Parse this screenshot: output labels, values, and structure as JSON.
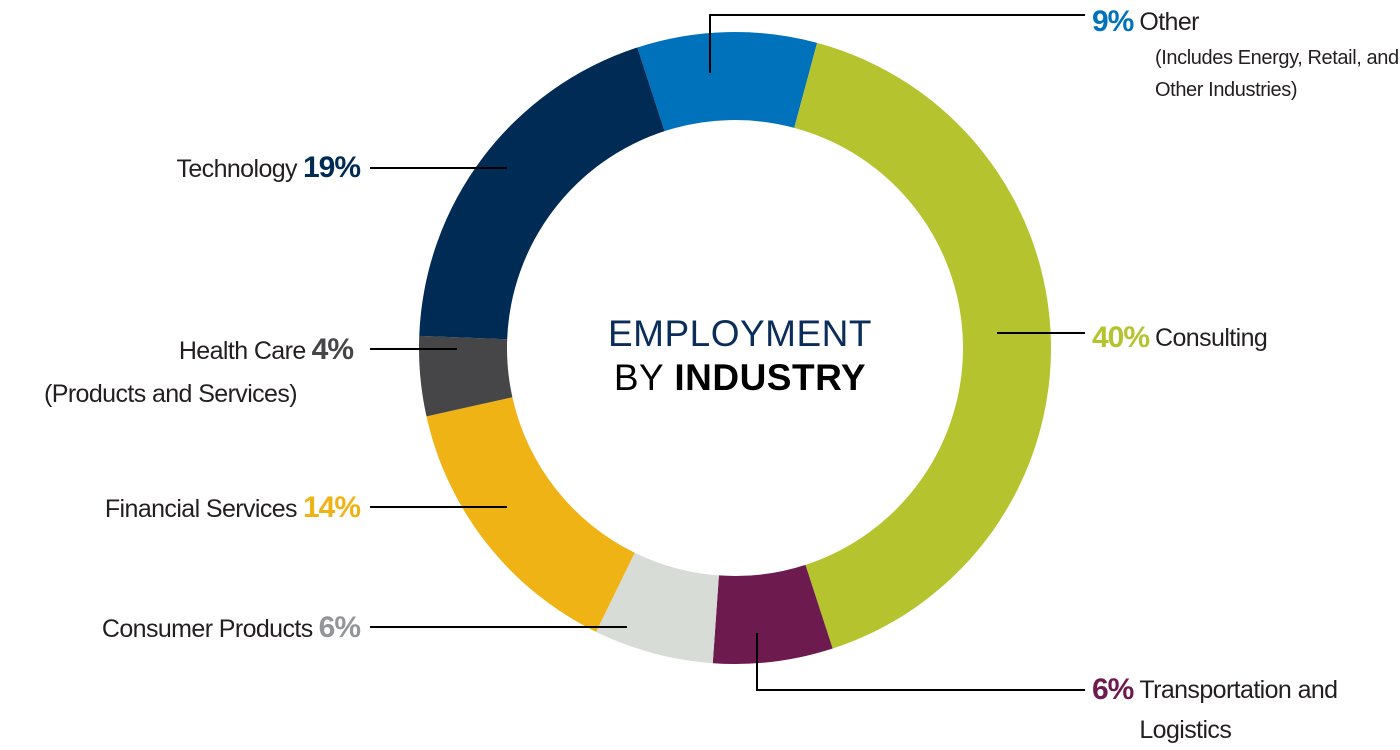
{
  "chart_data": {
    "type": "pie",
    "title_lines": [
      "EMPLOYMENT",
      "BY",
      "INDUSTRY"
    ],
    "categories": [
      "Other",
      "Consulting",
      "Transportation and Logistics",
      "Consumer Products",
      "Financial Services",
      "Health Care",
      "Technology"
    ],
    "category_notes": [
      "(Includes Energy, Retail, and Other Industries)",
      null,
      null,
      null,
      null,
      "(Products and Services)",
      null
    ],
    "values": [
      9,
      40,
      6,
      6,
      14,
      4,
      19
    ],
    "value_labels": [
      "9%",
      "40%",
      "6%",
      "6%",
      "14%",
      "4%",
      "19%"
    ],
    "colors": [
      "#0072bc",
      "#b5c42e",
      "#6d1a4f",
      "#d8dcd6",
      "#efb315",
      "#464547",
      "#002b55"
    ],
    "value_label_colors": [
      "#0072bc",
      "#b5c42e",
      "#6d1a4f",
      "#939598",
      "#efb315",
      "#464547",
      "#002b55"
    ]
  }
}
